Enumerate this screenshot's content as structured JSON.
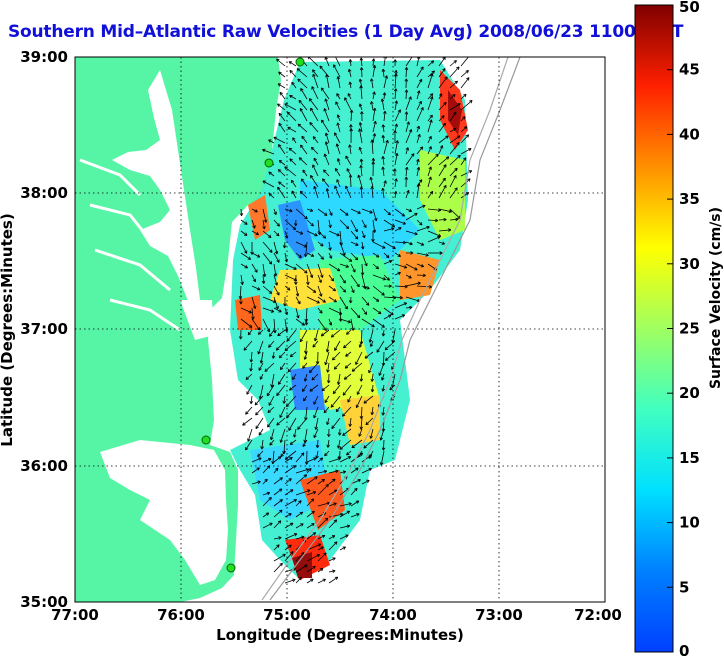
{
  "title": "Southern Mid–Atlantic Raw Velocities (1 Day Avg) 2008/06/23 1100 GMT",
  "map": {
    "xlabel": "Longitude (Degrees:Minutes)",
    "ylabel": "Latitude (Degrees:Minutes)",
    "x_ticks": [
      "77:00",
      "76:00",
      "75:00",
      "74:00",
      "73:00",
      "72:00"
    ],
    "y_ticks": [
      "39:00",
      "38:00",
      "37:00",
      "36:00",
      "35:00"
    ],
    "lon_range": [
      -77,
      -72
    ],
    "lat_range": [
      35,
      39
    ],
    "grid": "dotted",
    "land_color": "#55f5a5",
    "station_color": "#22dd22"
  },
  "colorbar": {
    "label": "Surface Velocity (cm/s)",
    "range": [
      0,
      50
    ],
    "ticks": [
      "0",
      "5",
      "10",
      "15",
      "20",
      "25",
      "30",
      "35",
      "40",
      "45",
      "50"
    ],
    "colormap": "jet"
  }
}
